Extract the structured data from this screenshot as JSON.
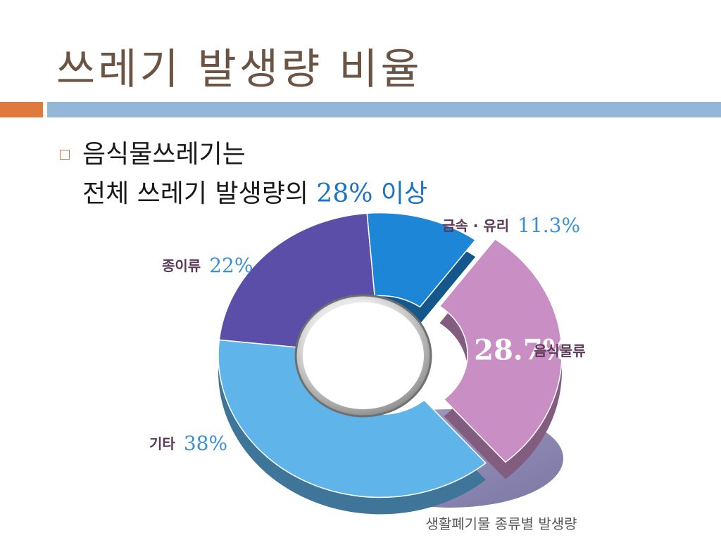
{
  "slide": {
    "title": "쓰레기 발생량 비율",
    "bullet_line1": "음식물쓰레기는",
    "bullet_line2_prefix": "전체 쓰레기 발생량의 ",
    "bullet_line2_highlight": "28% 이상"
  },
  "colors": {
    "title": "#6b5444",
    "accent_orange": "#e07a3c",
    "accent_blue": "#93b7d6",
    "highlight": "#1a73c7"
  },
  "chart_data": {
    "type": "pie",
    "style": "3d-donut",
    "caption": "생활폐기물 종류별 발생량",
    "slices": [
      {
        "name": "음식물류",
        "value": 28.7,
        "value_label": "28.7%",
        "color": "#c98fc4"
      },
      {
        "name": "기타",
        "value": 38,
        "value_label": "38%",
        "color": "#5fb4ea"
      },
      {
        "name": "종이류",
        "value": 22,
        "value_label": "22%",
        "color": "#5b4ea8"
      },
      {
        "name": "금속 · 유리",
        "value": 11.3,
        "value_label": "11.3%",
        "color": "#1e86d6"
      }
    ]
  }
}
